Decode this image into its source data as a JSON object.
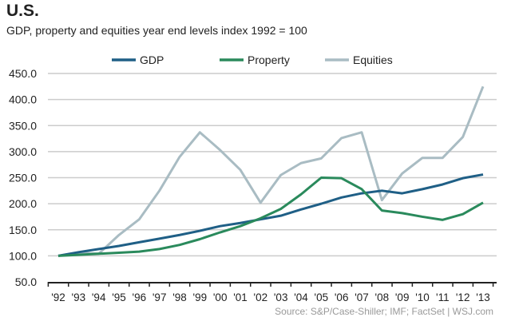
{
  "chart_data": {
    "type": "line",
    "title": "U.S.",
    "subtitle": "GDP, property and equities year end levels index 1992 = 100",
    "source": "Source: S&P/Case-Shiller; IMF; FactSet  |  WSJ.com",
    "categories": [
      "'92",
      "'93",
      "'94",
      "'95",
      "'96",
      "'97",
      "'98",
      "'99",
      "'00",
      "'01",
      "'02",
      "'03",
      "'04",
      "'05",
      "'06",
      "'07",
      "'08",
      "'09",
      "'10",
      "'11",
      "'12",
      "'13"
    ],
    "yticks": [
      "50.0",
      "100.0",
      "150.0",
      "200.0",
      "250.0",
      "300.0",
      "350.0",
      "400.0",
      "450.0"
    ],
    "ylim": [
      50,
      450
    ],
    "grid": true,
    "legend_position": "top",
    "series": [
      {
        "name": "GDP",
        "color": "#1f5f86",
        "values": [
          100,
          107,
          113,
          119,
          126,
          133,
          140,
          148,
          157,
          163,
          170,
          177,
          189,
          200,
          212,
          220,
          225,
          220,
          228,
          237,
          249,
          256
        ]
      },
      {
        "name": "Property",
        "color": "#2a8a5c",
        "values": [
          100,
          102,
          104,
          106,
          108,
          113,
          121,
          132,
          145,
          157,
          172,
          190,
          218,
          250,
          249,
          228,
          187,
          182,
          175,
          169,
          180,
          202
        ]
      },
      {
        "name": "Equities",
        "color": "#a9bcc3",
        "values": [
          100,
          106,
          104,
          140,
          170,
          225,
          290,
          337,
          303,
          265,
          202,
          255,
          278,
          287,
          326,
          337,
          207,
          258,
          288,
          288,
          328,
          425
        ]
      }
    ]
  }
}
